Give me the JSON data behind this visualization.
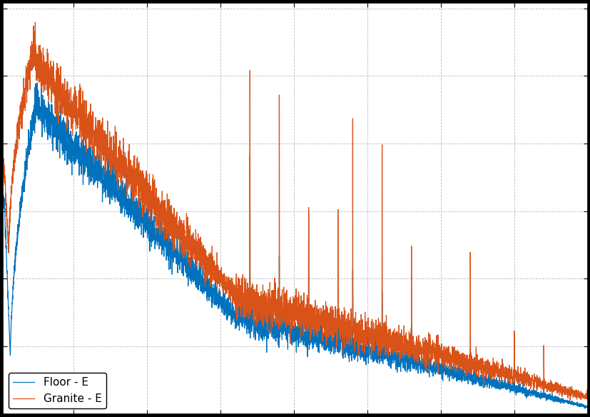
{
  "line1_label": "Floor - E",
  "line2_label": "Granite - E",
  "line1_color": "#0072BD",
  "line2_color": "#D95319",
  "background_color": "#ffffff",
  "grid_color": "#aaaaaa",
  "linewidth": 0.9,
  "legend_loc": "lower left",
  "legend_fontsize": 11,
  "seed": 0
}
